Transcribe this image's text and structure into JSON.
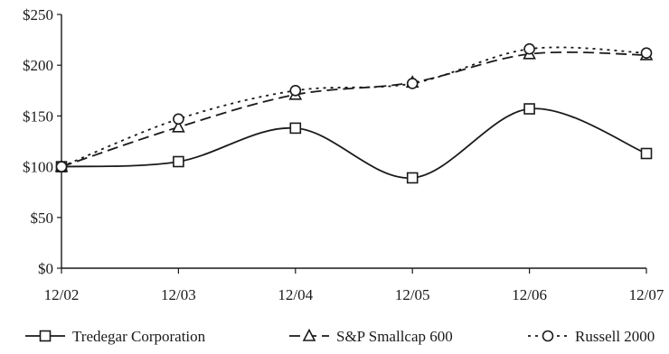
{
  "chart_data": {
    "type": "line",
    "title": "",
    "xlabel": "",
    "ylabel": "",
    "categories": [
      "12/02",
      "12/03",
      "12/04",
      "12/05",
      "12/06",
      "12/07"
    ],
    "ylim": [
      0,
      250
    ],
    "yticks": [
      0,
      50,
      100,
      150,
      200,
      250
    ],
    "ytick_labels": [
      "$0",
      "$50",
      "$100",
      "$150",
      "$200",
      "$250"
    ],
    "grid": false,
    "legend_position": "bottom",
    "series": [
      {
        "name": "Tredegar Corporation",
        "values": [
          100,
          105,
          138,
          89,
          157,
          113
        ],
        "marker": "square",
        "dash": "solid",
        "color": "#1a1a1a"
      },
      {
        "name": "S&P Smallcap 600",
        "values": [
          100,
          139,
          171,
          183,
          211,
          210
        ],
        "marker": "triangle",
        "dash": "dashed",
        "color": "#1a1a1a"
      },
      {
        "name": "Russell 2000",
        "values": [
          100,
          147,
          175,
          182,
          216,
          212
        ],
        "marker": "circle",
        "dash": "dotted",
        "color": "#1a1a1a"
      }
    ]
  }
}
